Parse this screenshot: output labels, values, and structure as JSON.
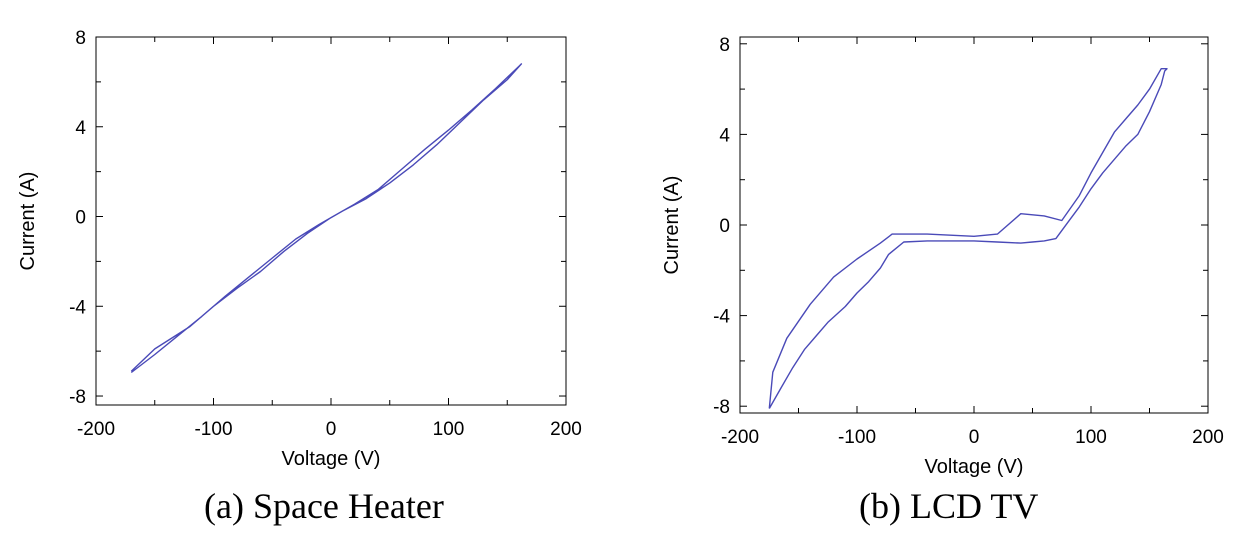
{
  "chart_data": [
    {
      "type": "line",
      "title": "(a) Space Heater",
      "xlabel": "Voltage (V)",
      "ylabel": "Current (A)",
      "xlim": [
        -200,
        200
      ],
      "ylim": [
        -8.4,
        8
      ],
      "xticks": [
        -200,
        -100,
        0,
        100,
        200
      ],
      "xtick_labels": [
        "-200",
        "-100",
        "0",
        "100",
        "200"
      ],
      "yticks": [
        -8,
        -4,
        0,
        4,
        8
      ],
      "ytick_labels": [
        "-8",
        "-4",
        "0",
        "4",
        "8"
      ],
      "grid": false,
      "line_color": "#4a4ab8",
      "series": [
        {
          "x": [
            -170,
            -160,
            -150,
            -120,
            -100,
            -80,
            -60,
            -40,
            -20,
            0,
            20,
            40,
            60,
            80,
            100,
            120,
            140,
            150,
            160,
            162,
            150,
            130,
            110,
            90,
            70,
            50,
            30,
            10,
            -10,
            -30,
            -50,
            -70,
            -90,
            -110,
            -130,
            -150,
            -170
          ],
          "y": [
            -6.9,
            -6.4,
            -5.9,
            -4.9,
            -4.0,
            -3.2,
            -2.45,
            -1.55,
            -0.75,
            -0.05,
            0.55,
            1.2,
            2.1,
            3.0,
            3.85,
            4.75,
            5.7,
            6.2,
            6.7,
            6.8,
            6.1,
            5.2,
            4.2,
            3.2,
            2.3,
            1.5,
            0.8,
            0.25,
            -0.35,
            -1.0,
            -1.85,
            -2.7,
            -3.55,
            -4.45,
            -5.3,
            -6.15,
            -6.95
          ]
        }
      ]
    },
    {
      "type": "line",
      "title": "(b) LCD TV",
      "xlabel": "Voltage (V)",
      "ylabel": "Current (A)",
      "xlim": [
        -200,
        200
      ],
      "ylim": [
        -8.3,
        8.3
      ],
      "xticks": [
        -200,
        -100,
        0,
        100,
        200
      ],
      "xtick_labels": [
        "-200",
        "-100",
        "0",
        "100",
        "200"
      ],
      "yticks": [
        -8,
        -4,
        0,
        4,
        8
      ],
      "ytick_labels": [
        "-8",
        "-4",
        "0",
        "4",
        "8"
      ],
      "grid": false,
      "line_color": "#4a4ab8",
      "series": [
        {
          "x": [
            -175,
            -165,
            -155,
            -145,
            -135,
            -125,
            -110,
            -100,
            -90,
            -80,
            -73,
            -60,
            -40,
            -20,
            0,
            20,
            40,
            50,
            60,
            70,
            80,
            90,
            100,
            110,
            120,
            130,
            140,
            150,
            160,
            163,
            165,
            160,
            150,
            140,
            130,
            120,
            110,
            100,
            90,
            75,
            60,
            40,
            20,
            0,
            -20,
            -40,
            -60,
            -70,
            -80,
            -100,
            -120,
            -140,
            -160,
            -172,
            -175
          ],
          "y": [
            -8.1,
            -7.2,
            -6.3,
            -5.5,
            -4.9,
            -4.3,
            -3.6,
            -3.0,
            -2.5,
            -1.9,
            -1.3,
            -0.75,
            -0.7,
            -0.7,
            -0.7,
            -0.75,
            -0.8,
            -0.75,
            -0.7,
            -0.6,
            0.1,
            0.8,
            1.6,
            2.3,
            2.9,
            3.5,
            4.0,
            5.0,
            6.2,
            6.8,
            6.9,
            6.9,
            6.0,
            5.3,
            4.7,
            4.1,
            3.2,
            2.3,
            1.3,
            0.2,
            0.4,
            0.5,
            -0.4,
            -0.5,
            -0.45,
            -0.4,
            -0.4,
            -0.4,
            -0.8,
            -1.5,
            -2.3,
            -3.5,
            -5.0,
            -6.5,
            -8.1
          ]
        }
      ]
    }
  ],
  "captions": {
    "a": "(a) Space Heater",
    "b": "(b) LCD TV"
  }
}
